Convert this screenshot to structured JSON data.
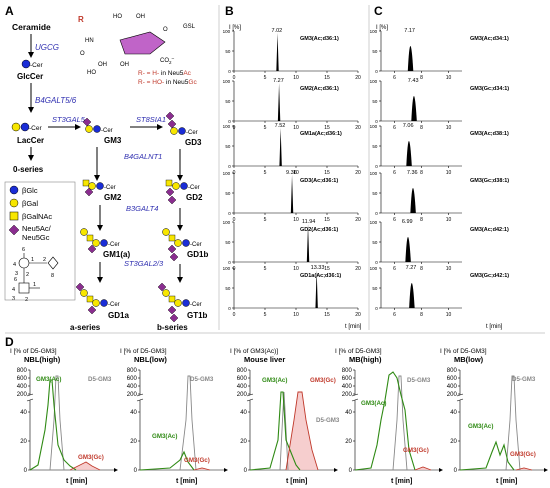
{
  "panels": {
    "A": "A",
    "B": "B",
    "C": "C",
    "D": "D"
  },
  "pathway": {
    "ceramide": "Ceramide",
    "ugcg": "UGCG",
    "glccer": "GlcCer",
    "b4galt": "B4GALT5/6",
    "laccer": "LacCer",
    "zero_series": "0-series",
    "st3gal5": "ST3GAL5",
    "st8sia1": "ST8SIA1",
    "gm3": "GM3",
    "gd3": "GD3",
    "b4galnt1": "B4GALNT1",
    "gm2": "GM2",
    "gd2": "GD2",
    "b3galt4": "B3GALT4",
    "gm1a": "GM1(a)",
    "gd1b": "GD1b",
    "st3gal23": "ST3GAL2/3",
    "gd1a": "GD1a",
    "gt1b": "GT1b",
    "a_series": "a-series",
    "b_series": "b-series",
    "cer": "-Cer",
    "gsl": "GSL",
    "r": "R",
    "r_neu5ac_r": "R- = H-",
    "r_neu5ac_in": " in Neu5",
    "r_neu5ac_suf": "Ac",
    "r_neu5gc_r": "R- = HO-",
    "r_neu5gc_in": " in Neu5",
    "r_neu5gc_suf": "Gc",
    "oh": "OH",
    "ho": "HO",
    "hn": "HN",
    "o": "O",
    "co2": "CO",
    "sub2": "2",
    "minus": "−",
    "legend": {
      "glc": "βGlc",
      "gal": "βGal",
      "galnac": "βGalNAc",
      "neu5ac": "Neu5Ac/",
      "neu5gc": "Neu5Gc"
    },
    "linkage": {
      "n6": "6",
      "n4": "4",
      "n3": "3",
      "n2": "2",
      "n1": "1",
      "n8": "8"
    }
  },
  "colors": {
    "glc": "#1a2dd6",
    "gal": "#f7e600",
    "galnac": "#f7e600",
    "neu5ac": "#8a2d8f",
    "enzyme": "#2f2fb0",
    "green": "#2f8a14",
    "red": "#c0392b",
    "pink": "#f5c6c6",
    "grey": "#888888",
    "sugar_ring": "#c064c8"
  },
  "panel_b": {
    "ylabel": "I [%]",
    "xticks": [
      "0",
      "5",
      "10",
      "15",
      "20"
    ],
    "yticks": [
      "0",
      "50",
      "100"
    ],
    "xlabel": "t [min]",
    "traces": [
      {
        "name": "GM3(Ac;d36:1)",
        "rt": 7.02,
        "label": "7.02"
      },
      {
        "name": "GM2(Ac;d36:1)",
        "rt": 7.27,
        "label": "7.27"
      },
      {
        "name": "GM1a(Ac;d36:1)",
        "rt": 7.52,
        "label": "7.52"
      },
      {
        "name": "GD3(Ac;d36:1)",
        "rt": 9.36,
        "label": "9.36"
      },
      {
        "name": "GD2(Ac;d36:1)",
        "rt": 11.94,
        "label": "11.94"
      },
      {
        "name": "GD1a(Ac;d36:1)",
        "rt": 13.33,
        "label": "13.33"
      }
    ]
  },
  "panel_c": {
    "ylabel": "I [%]",
    "xticks": [
      "6",
      "8",
      "10"
    ],
    "yticks": [
      "0",
      "50",
      "100"
    ],
    "xlabel": "t [min]",
    "traces": [
      {
        "name": "GM3(Ac;d34:1)",
        "rt": 7.17,
        "label": "7.17"
      },
      {
        "name": "GM3(Gc;d34:1)",
        "rt": 7.43,
        "label": "7.43"
      },
      {
        "name": "GM3(Ac;d38:1)",
        "rt": 7.06,
        "label": "7.06"
      },
      {
        "name": "GM3(Gc;d38:1)",
        "rt": 7.36,
        "label": "7.36"
      },
      {
        "name": "GM3(Ac;d42:1)",
        "rt": 6.99,
        "label": "6.99"
      },
      {
        "name": "GM3(Gc;d42:1)",
        "rt": 7.27,
        "label": "7.27"
      }
    ]
  },
  "panel_d": {
    "yticks": [
      "0",
      "20",
      "40",
      "200",
      "400",
      "600",
      "800"
    ],
    "xlabel": "t [min]",
    "charts": [
      {
        "ylabel": "I [% of D5-GM3]",
        "title": "NBL(high)",
        "labels": [
          "GM3(Ac)",
          "D5-GM3",
          "GM3(Gc)"
        ]
      },
      {
        "ylabel": "I [% of D5-GM3]",
        "title": "NBL(low)",
        "labels": [
          "D5-GM3",
          "GM3(Ac)",
          "GM3(Gc)"
        ]
      },
      {
        "ylabel": "I [% of GM3(Ac)]",
        "title": "Mouse liver",
        "labels": [
          "GM3(Ac)",
          "GM3(Gc)",
          "D5-GM3"
        ]
      },
      {
        "ylabel": "I [% of D5-GM3]",
        "title": "MB(high)",
        "labels": [
          "D5-GM3",
          "GM3(Ac)",
          "GM3(Gc)"
        ]
      },
      {
        "ylabel": "I [% of D5-GM3]",
        "title": "MB(low)",
        "labels": [
          "D5-GM3",
          "GM3(Ac)",
          "GM3(Gc)"
        ]
      }
    ]
  }
}
